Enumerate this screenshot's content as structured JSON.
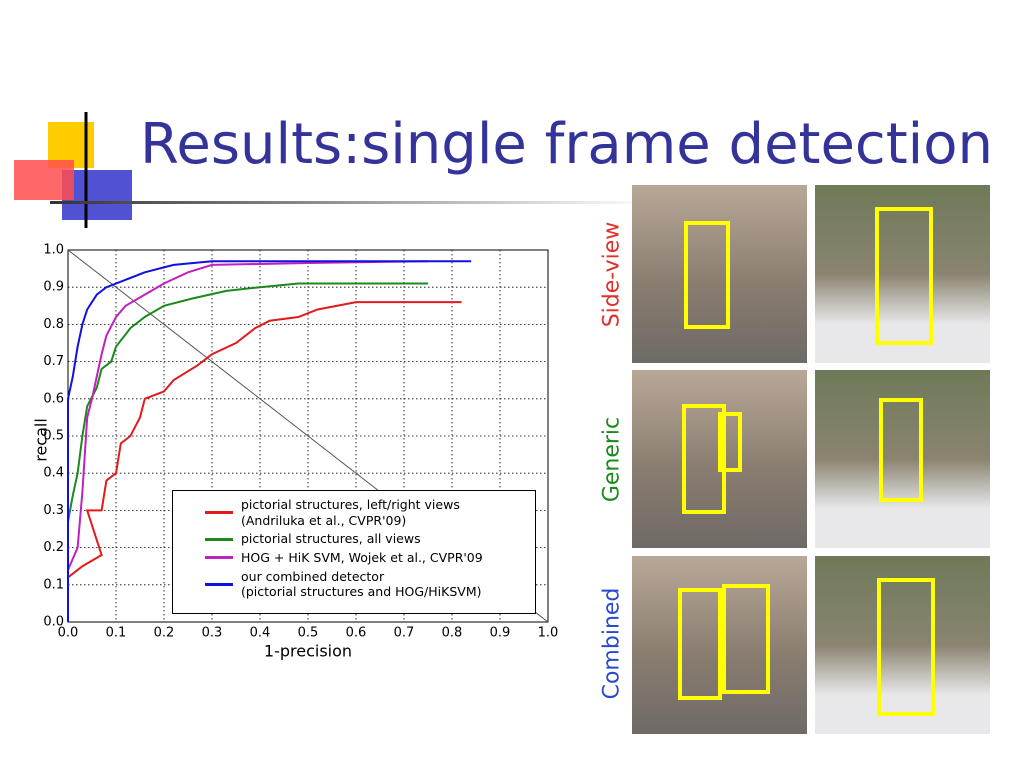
{
  "title": "Results:single frame detection",
  "image_rows": [
    "Side-view",
    "Generic",
    "Combined"
  ],
  "chart_data": {
    "type": "line",
    "x_label": "1-precision",
    "y_label": "recall",
    "xlim": [
      0,
      1
    ],
    "ylim": [
      0,
      1
    ],
    "grid": true,
    "xticks": [
      {
        "value": 0,
        "label": "0.0"
      },
      0.1,
      0.2,
      0.3,
      0.4,
      0.5,
      0.6,
      0.7,
      0.8,
      0.9,
      {
        "value": 1,
        "label": "1.0"
      }
    ],
    "yticks": [
      {
        "value": 0,
        "label": "0.0"
      },
      0.1,
      0.2,
      0.3,
      0.4,
      0.5,
      0.6,
      0.7,
      0.8,
      0.9,
      {
        "value": 1,
        "label": "1.0"
      }
    ],
    "series": [
      {
        "name": "pictorial structures, left/right views\n(Andriluka et al., CVPR'09)",
        "color": "#e31a1c",
        "x": [
          0,
          0.03,
          0.07,
          0.06,
          0.05,
          0.04,
          0.07,
          0.08,
          0.1,
          0.11,
          0.13,
          0.15,
          0.16,
          0.2,
          0.22,
          0.27,
          0.3,
          0.35,
          0.39,
          0.42,
          0.48,
          0.52,
          0.6,
          0.72,
          0.82
        ],
        "values": [
          0.12,
          0.15,
          0.18,
          0.22,
          0.26,
          0.3,
          0.3,
          0.38,
          0.4,
          0.48,
          0.5,
          0.55,
          0.6,
          0.62,
          0.65,
          0.69,
          0.72,
          0.75,
          0.79,
          0.81,
          0.82,
          0.84,
          0.86,
          0.86,
          0.86
        ]
      },
      {
        "name": "pictorial structures, all views",
        "color": "#1a8a1a",
        "x": [
          0,
          0.01,
          0.02,
          0.03,
          0.04,
          0.06,
          0.07,
          0.09,
          0.1,
          0.13,
          0.16,
          0.2,
          0.26,
          0.33,
          0.4,
          0.48,
          0.75
        ],
        "values": [
          0.27,
          0.34,
          0.4,
          0.5,
          0.58,
          0.63,
          0.68,
          0.7,
          0.74,
          0.79,
          0.82,
          0.85,
          0.87,
          0.89,
          0.9,
          0.91,
          0.91
        ]
      },
      {
        "name": "HOG + HiK SVM, Wojek et al., CVPR'09",
        "color": "#c020c0",
        "x": [
          0,
          0.02,
          0.03,
          0.035,
          0.04,
          0.05,
          0.06,
          0.07,
          0.08,
          0.1,
          0.12,
          0.16,
          0.2,
          0.25,
          0.3,
          0.5,
          0.75
        ],
        "values": [
          0.14,
          0.2,
          0.35,
          0.45,
          0.55,
          0.6,
          0.66,
          0.72,
          0.77,
          0.82,
          0.85,
          0.88,
          0.91,
          0.94,
          0.96,
          0.965,
          0.97
        ]
      },
      {
        "name": "our combined detector\n(pictorial structures and HOG/HiKSVM)",
        "color": "#1010e0",
        "x": [
          0,
          0,
          0.01,
          0.02,
          0.03,
          0.04,
          0.06,
          0.08,
          0.12,
          0.16,
          0.22,
          0.3,
          0.5,
          0.84
        ],
        "values": [
          0,
          0.6,
          0.66,
          0.74,
          0.8,
          0.84,
          0.88,
          0.9,
          0.92,
          0.94,
          0.96,
          0.97,
          0.97,
          0.97
        ]
      }
    ]
  }
}
